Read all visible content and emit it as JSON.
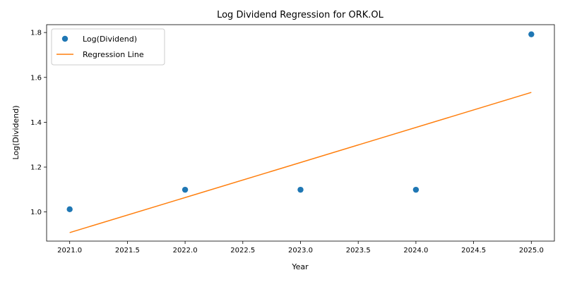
{
  "chart_data": {
    "type": "scatter",
    "title": "Log Dividend Regression for ORK.OL",
    "xlabel": "Year",
    "ylabel": "Log(Dividend)",
    "xlim": [
      2020.8,
      2025.2
    ],
    "ylim": [
      0.87,
      1.835
    ],
    "xticks": [
      2021.0,
      2021.5,
      2022.0,
      2022.5,
      2023.0,
      2023.5,
      2024.0,
      2024.5,
      2025.0
    ],
    "xtick_labels": [
      "2021.0",
      "2021.5",
      "2022.0",
      "2022.5",
      "2023.0",
      "2023.5",
      "2024.0",
      "2024.5",
      "2025.0"
    ],
    "yticks": [
      1.0,
      1.2,
      1.4,
      1.6,
      1.8
    ],
    "ytick_labels": [
      "1.0",
      "1.2",
      "1.4",
      "1.6",
      "1.8"
    ],
    "grid": false,
    "legend_position": "top-left",
    "series": [
      {
        "name": "Log(Dividend)",
        "kind": "scatter",
        "color": "#1f77b4",
        "x": [
          2021,
          2022,
          2023,
          2024,
          2025
        ],
        "y": [
          1.012,
          1.099,
          1.099,
          1.099,
          1.792
        ]
      },
      {
        "name": "Regression Line",
        "kind": "line",
        "color": "#ff7f0e",
        "x": [
          2021,
          2025
        ],
        "y": [
          0.908,
          1.533
        ]
      }
    ]
  }
}
